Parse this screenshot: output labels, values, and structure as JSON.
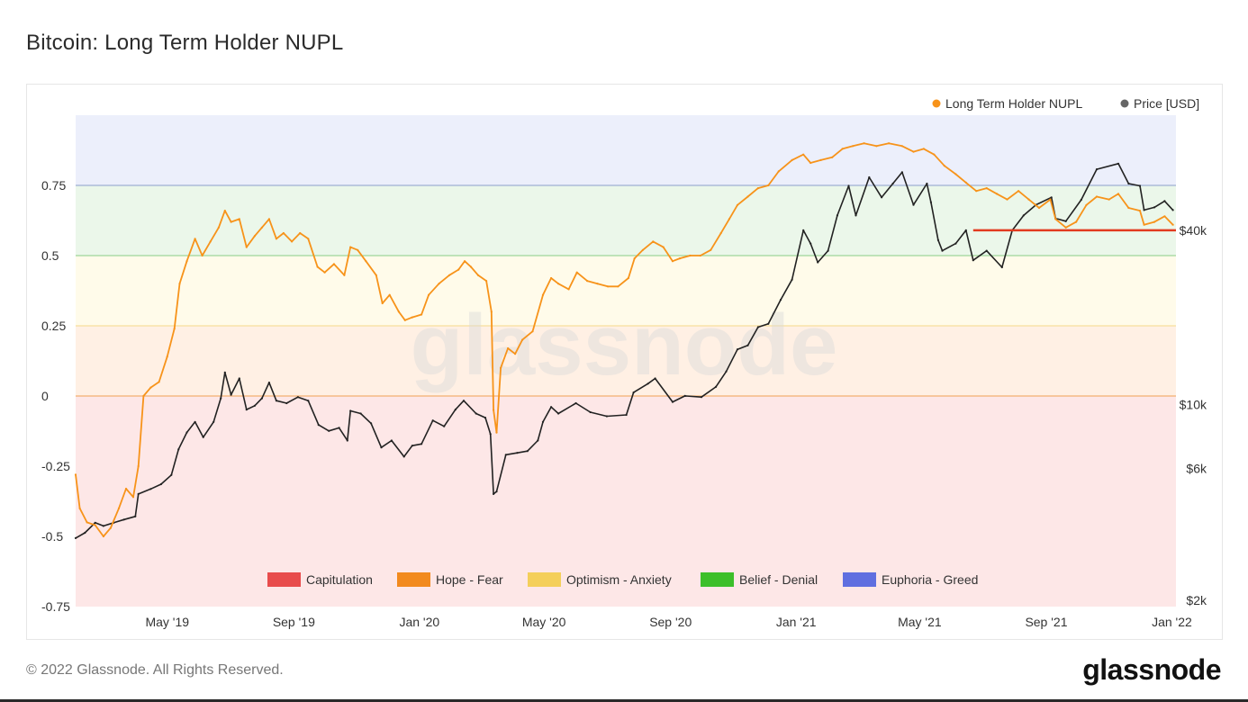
{
  "header": {
    "title": "Bitcoin: Long Term Holder NUPL"
  },
  "footer": {
    "copyright": "© 2022 Glassnode. All Rights Reserved.",
    "brand": "glassnode"
  },
  "watermark": "glassnode",
  "chart_data": {
    "type": "line",
    "title": "Bitcoin: Long Term Holder NUPL",
    "legend_top": [
      {
        "name": "Long Term Holder NUPL",
        "color": "#f7931a"
      },
      {
        "name": "Price [USD]",
        "color": "#666666"
      }
    ],
    "legend_zones": [
      {
        "name": "Capitulation",
        "color": "#e84c4c"
      },
      {
        "name": "Hope - Fear",
        "color": "#f28a1e"
      },
      {
        "name": "Optimism - Anxiety",
        "color": "#f4cf5a"
      },
      {
        "name": "Belief - Denial",
        "color": "#3cbf2a"
      },
      {
        "name": "Euphoria - Greed",
        "color": "#5f6fe0"
      }
    ],
    "zones": [
      {
        "name": "Capitulation",
        "from": -0.75,
        "to": 0,
        "color": "#fde7e7"
      },
      {
        "name": "Hope - Fear",
        "from": 0,
        "to": 0.25,
        "color": "#fff0e4"
      },
      {
        "name": "Optimism - Anxiety",
        "from": 0.25,
        "to": 0.5,
        "color": "#fffbea"
      },
      {
        "name": "Belief - Denial",
        "from": 0.5,
        "to": 0.75,
        "color": "#ebf7ea"
      },
      {
        "name": "Euphoria - Greed",
        "from": 0.75,
        "to": 1.0,
        "color": "#eceffb"
      }
    ],
    "zone_lines": [
      {
        "y": 0,
        "color": "#f2b071"
      },
      {
        "y": 0.25,
        "color": "#f6de9c"
      },
      {
        "y": 0.5,
        "color": "#9ed69a"
      },
      {
        "y": 0.75,
        "color": "#9fb0d4"
      }
    ],
    "x_ticks": [
      "May '19",
      "Sep '19",
      "Jan '20",
      "May '20",
      "Sep '20",
      "Jan '21",
      "May '21",
      "Sep '21",
      "Jan '22"
    ],
    "x_tick_dates": [
      "2019-05-01",
      "2019-09-01",
      "2020-01-01",
      "2020-05-01",
      "2020-09-01",
      "2021-01-01",
      "2021-05-01",
      "2021-09-01",
      "2022-01-01"
    ],
    "x_range": [
      "2019-02-01",
      "2022-01-05"
    ],
    "y_left_ticks": [
      0.75,
      0.5,
      0.25,
      0,
      -0.25,
      -0.5,
      -0.75
    ],
    "y_left_tick_labels": [
      "0.75",
      "0.5",
      "0.25",
      "0",
      "-0.25",
      "-0.5",
      "-0.75"
    ],
    "y_left_range": [
      -0.75,
      1.0
    ],
    "y_right_log": true,
    "y_right_ticks": [
      40000,
      10000,
      6000,
      2000
    ],
    "y_right_tick_labels": [
      "$40k",
      "$10k",
      "$6k",
      "$2k"
    ],
    "y_right_range": [
      2000,
      100000
    ],
    "series": [
      {
        "name": "Long Term Holder NUPL",
        "color": "#f7931a",
        "points": [
          [
            "2019-02-01",
            -0.28
          ],
          [
            "2019-02-05",
            -0.4
          ],
          [
            "2019-02-12",
            -0.45
          ],
          [
            "2019-02-20",
            -0.46
          ],
          [
            "2019-02-28",
            -0.5
          ],
          [
            "2019-03-07",
            -0.47
          ],
          [
            "2019-03-15",
            -0.4
          ],
          [
            "2019-03-22",
            -0.33
          ],
          [
            "2019-03-29",
            -0.36
          ],
          [
            "2019-04-03",
            -0.25
          ],
          [
            "2019-04-08",
            0.0
          ],
          [
            "2019-04-15",
            0.03
          ],
          [
            "2019-04-23",
            0.05
          ],
          [
            "2019-05-01",
            0.14
          ],
          [
            "2019-05-08",
            0.24
          ],
          [
            "2019-05-13",
            0.4
          ],
          [
            "2019-05-20",
            0.48
          ],
          [
            "2019-05-28",
            0.56
          ],
          [
            "2019-06-04",
            0.5
          ],
          [
            "2019-06-12",
            0.55
          ],
          [
            "2019-06-20",
            0.6
          ],
          [
            "2019-06-26",
            0.66
          ],
          [
            "2019-07-02",
            0.62
          ],
          [
            "2019-07-10",
            0.63
          ],
          [
            "2019-07-17",
            0.53
          ],
          [
            "2019-07-25",
            0.57
          ],
          [
            "2019-08-01",
            0.6
          ],
          [
            "2019-08-08",
            0.63
          ],
          [
            "2019-08-15",
            0.56
          ],
          [
            "2019-08-22",
            0.58
          ],
          [
            "2019-08-30",
            0.55
          ],
          [
            "2019-09-07",
            0.58
          ],
          [
            "2019-09-15",
            0.56
          ],
          [
            "2019-09-24",
            0.46
          ],
          [
            "2019-10-01",
            0.44
          ],
          [
            "2019-10-10",
            0.47
          ],
          [
            "2019-10-20",
            0.43
          ],
          [
            "2019-10-26",
            0.53
          ],
          [
            "2019-11-02",
            0.52
          ],
          [
            "2019-11-10",
            0.48
          ],
          [
            "2019-11-20",
            0.43
          ],
          [
            "2019-11-26",
            0.33
          ],
          [
            "2019-12-03",
            0.36
          ],
          [
            "2019-12-12",
            0.3
          ],
          [
            "2019-12-18",
            0.27
          ],
          [
            "2019-12-25",
            0.28
          ],
          [
            "2020-01-03",
            0.29
          ],
          [
            "2020-01-10",
            0.36
          ],
          [
            "2020-01-20",
            0.4
          ],
          [
            "2020-01-30",
            0.43
          ],
          [
            "2020-02-08",
            0.45
          ],
          [
            "2020-02-14",
            0.48
          ],
          [
            "2020-02-20",
            0.46
          ],
          [
            "2020-02-27",
            0.43
          ],
          [
            "2020-03-06",
            0.41
          ],
          [
            "2020-03-11",
            0.3
          ],
          [
            "2020-03-13",
            -0.05
          ],
          [
            "2020-03-16",
            -0.13
          ],
          [
            "2020-03-20",
            0.1
          ],
          [
            "2020-03-27",
            0.17
          ],
          [
            "2020-04-03",
            0.15
          ],
          [
            "2020-04-10",
            0.2
          ],
          [
            "2020-04-20",
            0.23
          ],
          [
            "2020-04-30",
            0.36
          ],
          [
            "2020-05-08",
            0.42
          ],
          [
            "2020-05-15",
            0.4
          ],
          [
            "2020-05-25",
            0.38
          ],
          [
            "2020-06-02",
            0.44
          ],
          [
            "2020-06-12",
            0.41
          ],
          [
            "2020-06-22",
            0.4
          ],
          [
            "2020-07-02",
            0.39
          ],
          [
            "2020-07-12",
            0.39
          ],
          [
            "2020-07-22",
            0.42
          ],
          [
            "2020-07-28",
            0.49
          ],
          [
            "2020-08-05",
            0.52
          ],
          [
            "2020-08-15",
            0.55
          ],
          [
            "2020-08-25",
            0.53
          ],
          [
            "2020-09-03",
            0.48
          ],
          [
            "2020-09-10",
            0.49
          ],
          [
            "2020-09-20",
            0.5
          ],
          [
            "2020-09-30",
            0.5
          ],
          [
            "2020-10-10",
            0.52
          ],
          [
            "2020-10-20",
            0.58
          ],
          [
            "2020-10-28",
            0.63
          ],
          [
            "2020-11-05",
            0.68
          ],
          [
            "2020-11-15",
            0.71
          ],
          [
            "2020-11-25",
            0.74
          ],
          [
            "2020-12-05",
            0.75
          ],
          [
            "2020-12-15",
            0.8
          ],
          [
            "2020-12-28",
            0.84
          ],
          [
            "2021-01-08",
            0.86
          ],
          [
            "2021-01-15",
            0.83
          ],
          [
            "2021-01-25",
            0.84
          ],
          [
            "2021-02-05",
            0.85
          ],
          [
            "2021-02-15",
            0.88
          ],
          [
            "2021-02-25",
            0.89
          ],
          [
            "2021-03-08",
            0.9
          ],
          [
            "2021-03-20",
            0.89
          ],
          [
            "2021-04-01",
            0.9
          ],
          [
            "2021-04-14",
            0.89
          ],
          [
            "2021-04-25",
            0.87
          ],
          [
            "2021-05-05",
            0.88
          ],
          [
            "2021-05-15",
            0.86
          ],
          [
            "2021-05-25",
            0.82
          ],
          [
            "2021-06-05",
            0.79
          ],
          [
            "2021-06-15",
            0.76
          ],
          [
            "2021-06-25",
            0.73
          ],
          [
            "2021-07-05",
            0.74
          ],
          [
            "2021-07-15",
            0.72
          ],
          [
            "2021-07-25",
            0.7
          ],
          [
            "2021-08-05",
            0.73
          ],
          [
            "2021-08-15",
            0.7
          ],
          [
            "2021-08-25",
            0.67
          ],
          [
            "2021-09-05",
            0.7
          ],
          [
            "2021-09-10",
            0.63
          ],
          [
            "2021-09-20",
            0.6
          ],
          [
            "2021-09-30",
            0.62
          ],
          [
            "2021-10-10",
            0.68
          ],
          [
            "2021-10-20",
            0.71
          ],
          [
            "2021-11-01",
            0.7
          ],
          [
            "2021-11-10",
            0.72
          ],
          [
            "2021-11-20",
            0.67
          ],
          [
            "2021-12-01",
            0.66
          ],
          [
            "2021-12-05",
            0.61
          ],
          [
            "2021-12-15",
            0.62
          ],
          [
            "2021-12-25",
            0.64
          ],
          [
            "2022-01-02",
            0.61
          ]
        ]
      },
      {
        "name": "Price [USD]",
        "color": "#222222",
        "points": [
          [
            "2019-02-01",
            3450
          ],
          [
            "2019-02-10",
            3600
          ],
          [
            "2019-02-20",
            3900
          ],
          [
            "2019-02-28",
            3800
          ],
          [
            "2019-03-10",
            3900
          ],
          [
            "2019-03-20",
            4000
          ],
          [
            "2019-03-31",
            4100
          ],
          [
            "2019-04-03",
            4900
          ],
          [
            "2019-04-15",
            5100
          ],
          [
            "2019-04-25",
            5300
          ],
          [
            "2019-05-05",
            5700
          ],
          [
            "2019-05-12",
            7000
          ],
          [
            "2019-05-20",
            8000
          ],
          [
            "2019-05-28",
            8700
          ],
          [
            "2019-06-05",
            7700
          ],
          [
            "2019-06-15",
            8700
          ],
          [
            "2019-06-22",
            10500
          ],
          [
            "2019-06-26",
            12900
          ],
          [
            "2019-07-02",
            10800
          ],
          [
            "2019-07-10",
            12300
          ],
          [
            "2019-07-17",
            9600
          ],
          [
            "2019-07-25",
            9900
          ],
          [
            "2019-08-01",
            10500
          ],
          [
            "2019-08-08",
            11900
          ],
          [
            "2019-08-15",
            10300
          ],
          [
            "2019-08-25",
            10100
          ],
          [
            "2019-09-05",
            10600
          ],
          [
            "2019-09-15",
            10300
          ],
          [
            "2019-09-25",
            8500
          ],
          [
            "2019-10-05",
            8100
          ],
          [
            "2019-10-15",
            8300
          ],
          [
            "2019-10-23",
            7500
          ],
          [
            "2019-10-26",
            9500
          ],
          [
            "2019-11-05",
            9300
          ],
          [
            "2019-11-15",
            8600
          ],
          [
            "2019-11-25",
            7100
          ],
          [
            "2019-12-05",
            7500
          ],
          [
            "2019-12-17",
            6600
          ],
          [
            "2019-12-25",
            7200
          ],
          [
            "2020-01-03",
            7300
          ],
          [
            "2020-01-14",
            8800
          ],
          [
            "2020-01-25",
            8400
          ],
          [
            "2020-02-05",
            9600
          ],
          [
            "2020-02-13",
            10300
          ],
          [
            "2020-02-25",
            9300
          ],
          [
            "2020-03-05",
            9000
          ],
          [
            "2020-03-10",
            7900
          ],
          [
            "2020-03-13",
            4900
          ],
          [
            "2020-03-16",
            5000
          ],
          [
            "2020-03-25",
            6700
          ],
          [
            "2020-04-05",
            6800
          ],
          [
            "2020-04-15",
            6900
          ],
          [
            "2020-04-25",
            7500
          ],
          [
            "2020-04-30",
            8700
          ],
          [
            "2020-05-08",
            9800
          ],
          [
            "2020-05-15",
            9300
          ],
          [
            "2020-06-01",
            10100
          ],
          [
            "2020-06-15",
            9400
          ],
          [
            "2020-07-01",
            9100
          ],
          [
            "2020-07-20",
            9200
          ],
          [
            "2020-07-27",
            11000
          ],
          [
            "2020-08-10",
            11800
          ],
          [
            "2020-08-17",
            12300
          ],
          [
            "2020-09-03",
            10200
          ],
          [
            "2020-09-15",
            10700
          ],
          [
            "2020-10-01",
            10600
          ],
          [
            "2020-10-15",
            11500
          ],
          [
            "2020-10-25",
            13000
          ],
          [
            "2020-11-05",
            15500
          ],
          [
            "2020-11-15",
            16000
          ],
          [
            "2020-11-25",
            18500
          ],
          [
            "2020-12-05",
            19000
          ],
          [
            "2020-12-17",
            23000
          ],
          [
            "2020-12-28",
            27000
          ],
          [
            "2021-01-08",
            40000
          ],
          [
            "2021-01-15",
            36000
          ],
          [
            "2021-01-22",
            31000
          ],
          [
            "2021-02-01",
            34000
          ],
          [
            "2021-02-10",
            45000
          ],
          [
            "2021-02-21",
            57000
          ],
          [
            "2021-02-28",
            45000
          ],
          [
            "2021-03-13",
            61000
          ],
          [
            "2021-03-25",
            52000
          ],
          [
            "2021-04-05",
            58000
          ],
          [
            "2021-04-14",
            63500
          ],
          [
            "2021-04-25",
            49000
          ],
          [
            "2021-05-08",
            58000
          ],
          [
            "2021-05-12",
            50000
          ],
          [
            "2021-05-19",
            37000
          ],
          [
            "2021-05-23",
            34000
          ],
          [
            "2021-06-05",
            36000
          ],
          [
            "2021-06-15",
            40000
          ],
          [
            "2021-06-22",
            31500
          ],
          [
            "2021-07-05",
            34000
          ],
          [
            "2021-07-20",
            29800
          ],
          [
            "2021-07-30",
            40000
          ],
          [
            "2021-08-10",
            45000
          ],
          [
            "2021-08-22",
            49000
          ],
          [
            "2021-09-06",
            52000
          ],
          [
            "2021-09-10",
            44000
          ],
          [
            "2021-09-20",
            43000
          ],
          [
            "2021-10-05",
            51000
          ],
          [
            "2021-10-20",
            65000
          ],
          [
            "2021-11-10",
            68000
          ],
          [
            "2021-11-20",
            58000
          ],
          [
            "2021-12-01",
            57000
          ],
          [
            "2021-12-05",
            47000
          ],
          [
            "2021-12-15",
            48000
          ],
          [
            "2021-12-25",
            50500
          ],
          [
            "2022-01-02",
            47000
          ]
        ]
      }
    ],
    "annotation_line": {
      "y": 0.59,
      "from": "2021-06-22",
      "to": "2022-01-05",
      "color": "#e23b20"
    }
  }
}
